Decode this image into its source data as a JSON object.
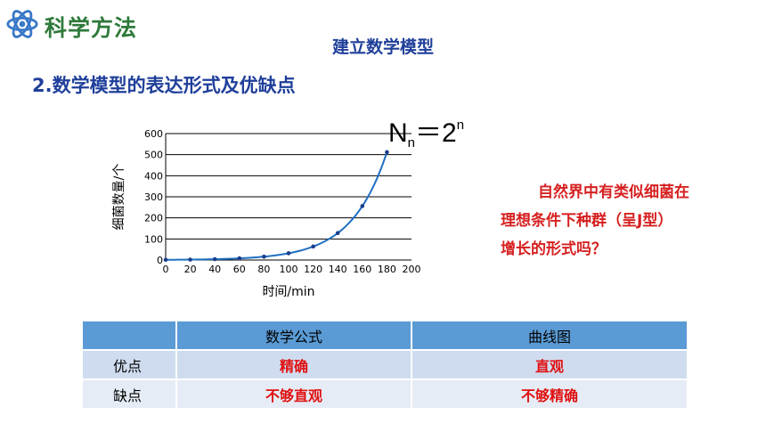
{
  "brand": {
    "title": "科学方法",
    "logo_icon": "atom-icon",
    "color": "#2e7a3a"
  },
  "title": "建立数学模型",
  "subtitle": "2.数学模型的表达形式及优缺点",
  "formula": {
    "base": "N",
    "sub": "n",
    "eq": "＝",
    "two": "2",
    "sup": "n"
  },
  "question": {
    "lines": [
      "自然界中有类似细菌在",
      "理想条件下种群（呈J型）",
      "增长的形式吗？"
    ],
    "color": "#d62020"
  },
  "chart_data": {
    "type": "line",
    "xlabel": "时间/min",
    "ylabel": "细菌数量/个",
    "xlim": [
      0,
      200
    ],
    "ylim": [
      0,
      600
    ],
    "xticks": [
      "0",
      "20",
      "40",
      "60",
      "80",
      "100",
      "120",
      "140",
      "160",
      "180",
      "200"
    ],
    "yticks": [
      "0",
      "100",
      "200",
      "300",
      "400",
      "500",
      "600"
    ],
    "grid": "horizontal",
    "series": [
      {
        "x": [
          0,
          20,
          40,
          60,
          80,
          100,
          120,
          140,
          160,
          180
        ],
        "y": [
          1,
          2,
          4,
          8,
          16,
          32,
          64,
          128,
          256,
          512
        ],
        "color": "#1f6fc0"
      }
    ]
  },
  "table": {
    "headers": [
      "",
      "数学公式",
      "曲线图"
    ],
    "rows": [
      {
        "label": "优点",
        "cells": [
          "精确",
          "直观"
        ]
      },
      {
        "label": "缺点",
        "cells": [
          "不够直观",
          "不够精确"
        ]
      }
    ]
  }
}
